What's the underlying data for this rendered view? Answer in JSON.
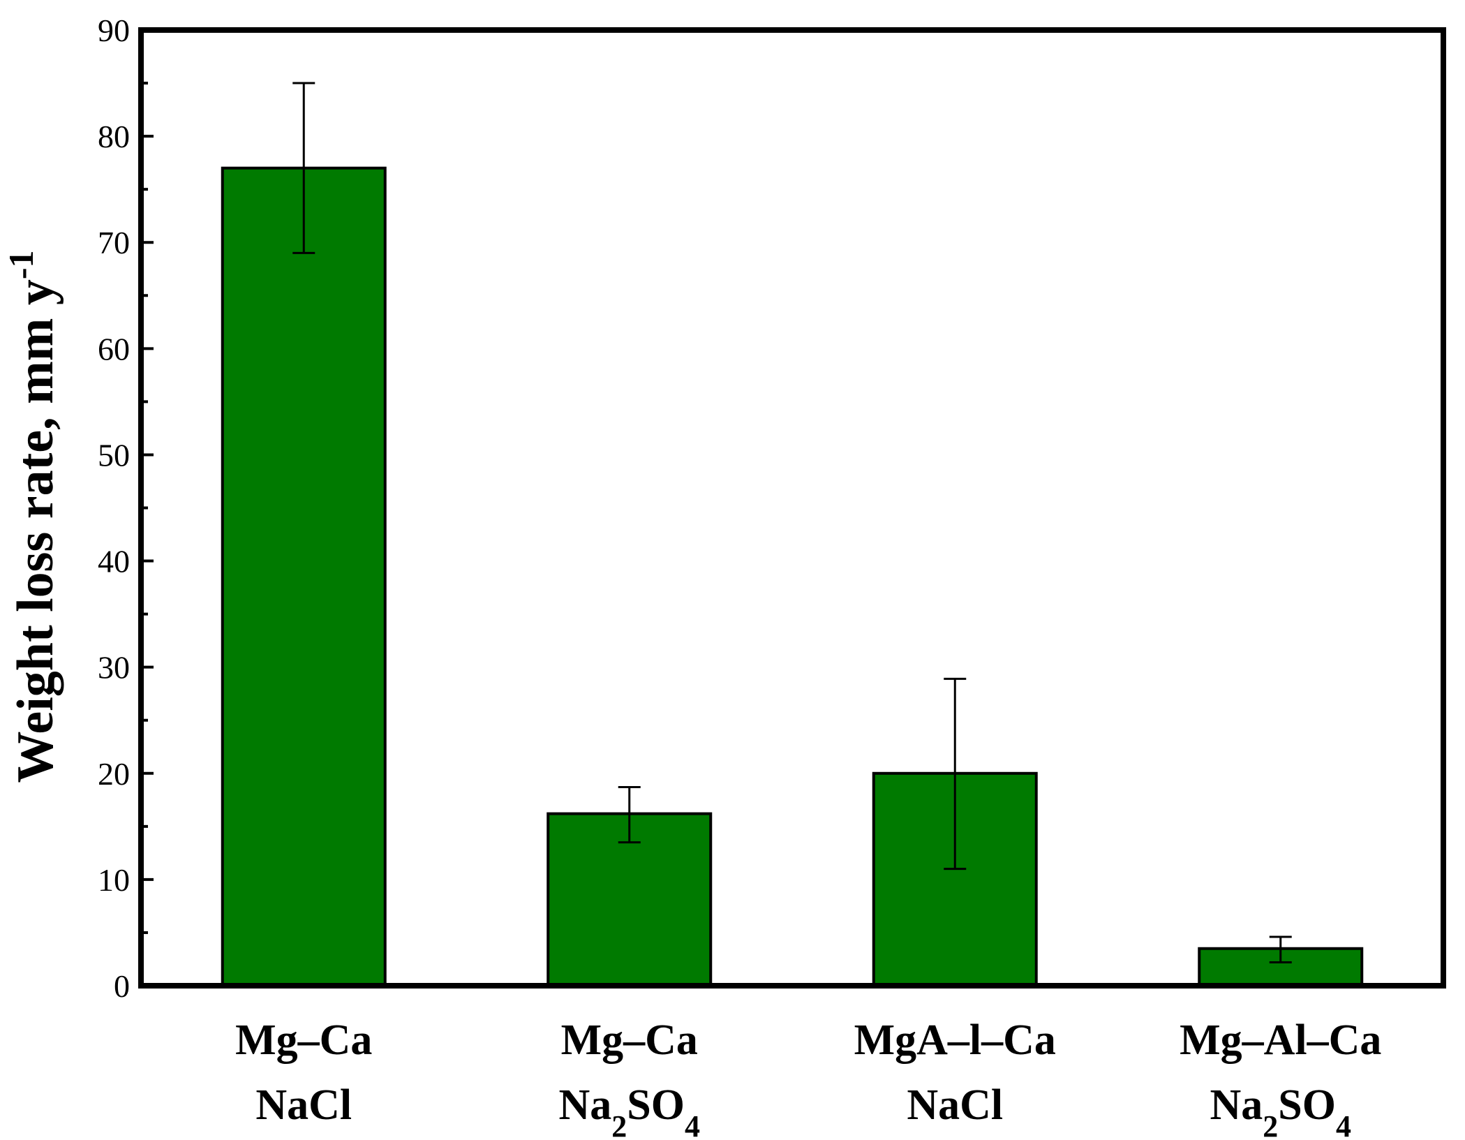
{
  "chart_data": {
    "type": "bar",
    "title": "",
    "xlabel": "",
    "ylabel": {
      "main": "Weight loss rate, mm y",
      "superscript": "-1"
    },
    "ylim": [
      0,
      90
    ],
    "yticks": [
      "0",
      "10",
      "20",
      "30",
      "40",
      "50",
      "60",
      "70",
      "80",
      "90"
    ],
    "grid": false,
    "bar_color": "#007a00",
    "categories": [
      {
        "line1": "Mg–Ca",
        "line2": [
          {
            "t": "NaCl",
            "sub": false
          }
        ]
      },
      {
        "line1": "Mg–Ca",
        "line2": [
          {
            "t": "Na",
            "sub": false
          },
          {
            "t": "2",
            "sub": true
          },
          {
            "t": "SO",
            "sub": false
          },
          {
            "t": "4",
            "sub": true
          }
        ]
      },
      {
        "line1": "MgA–l–Ca",
        "line2": [
          {
            "t": "NaCl",
            "sub": false
          }
        ]
      },
      {
        "line1": "Mg–Al–Ca",
        "line2": [
          {
            "t": "Na",
            "sub": false
          },
          {
            "t": "2",
            "sub": true
          },
          {
            "t": "SO",
            "sub": false
          },
          {
            "t": "4",
            "sub": true
          }
        ]
      }
    ],
    "values": [
      77,
      16.2,
      20,
      3.5
    ],
    "errors": [
      {
        "low": 69,
        "high": 85
      },
      {
        "low": 13.5,
        "high": 18.7
      },
      {
        "low": 11,
        "high": 28.9
      },
      {
        "low": 2.2,
        "high": 4.6
      }
    ]
  }
}
